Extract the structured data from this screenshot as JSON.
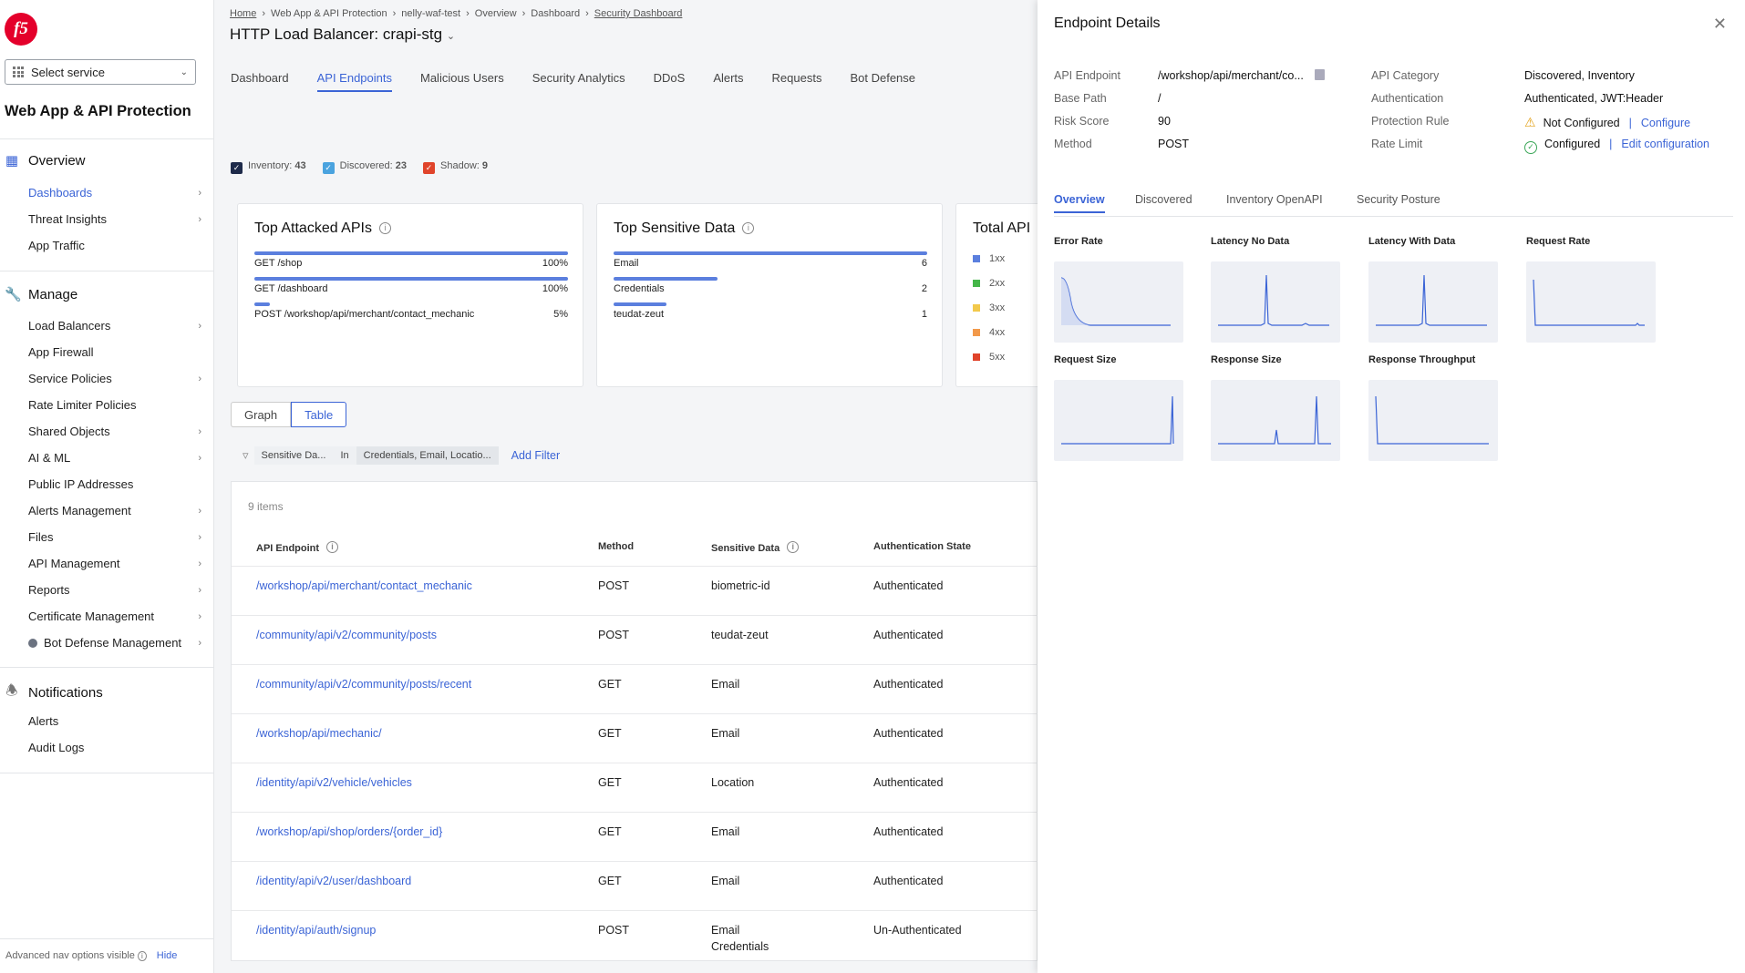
{
  "sidebar": {
    "service_select": "Select service",
    "app_title": "Web App & API Protection",
    "overview": {
      "label": "Overview",
      "items": [
        {
          "label": "Dashboards"
        },
        {
          "label": "Threat Insights"
        },
        {
          "label": "App Traffic"
        }
      ]
    },
    "manage": {
      "label": "Manage",
      "items": [
        {
          "label": "Load Balancers"
        },
        {
          "label": "App Firewall"
        },
        {
          "label": "Service Policies"
        },
        {
          "label": "Rate Limiter Policies"
        },
        {
          "label": "Shared Objects"
        },
        {
          "label": "AI & ML"
        },
        {
          "label": "Public IP Addresses"
        },
        {
          "label": "Alerts Management"
        },
        {
          "label": "Files"
        },
        {
          "label": "API Management"
        },
        {
          "label": "Reports"
        },
        {
          "label": "Certificate Management"
        },
        {
          "label": "Bot Defense Management"
        }
      ]
    },
    "notifications": {
      "label": "Notifications",
      "items": [
        {
          "label": "Alerts"
        },
        {
          "label": "Audit Logs"
        }
      ]
    },
    "advanced": "Advanced nav options visible",
    "hide": "Hide"
  },
  "breadcrumb": [
    "Home",
    "Web App & API Protection",
    "nelly-waf-test",
    "Overview",
    "Dashboard",
    "Security Dashboard"
  ],
  "page_title": "HTTP Load Balancer: crapi-stg",
  "tabs": [
    "Dashboard",
    "API Endpoints",
    "Malicious Users",
    "Security Analytics",
    "DDoS",
    "Alerts",
    "Requests",
    "Bot Defense"
  ],
  "legend": {
    "inventory_label": "Inventory:",
    "inventory_count": "43",
    "discovered_label": "Discovered:",
    "discovered_count": "23",
    "shadow_label": "Shadow:",
    "shadow_count": "9"
  },
  "top_attacked": {
    "title": "Top Attacked APIs",
    "rows": [
      {
        "label": "GET /shop",
        "value": "100%",
        "fraction": 1.0
      },
      {
        "label": "GET /dashboard",
        "value": "100%",
        "fraction": 1.0
      },
      {
        "label": "POST /workshop/api/merchant/contact_mechanic",
        "value": "5%",
        "fraction": 0.05
      }
    ]
  },
  "top_sensitive": {
    "title": "Top Sensitive Data",
    "rows": [
      {
        "label": "Email",
        "value": "6",
        "fraction": 1.0
      },
      {
        "label": "Credentials",
        "value": "2",
        "fraction": 0.33
      },
      {
        "label": "teudat-zeut",
        "value": "1",
        "fraction": 0.17
      }
    ]
  },
  "total_api": {
    "title": "Total API",
    "legend": [
      "1xx",
      "2xx",
      "3xx",
      "4xx",
      "5xx"
    ]
  },
  "view_toggle": [
    "Graph",
    "Table"
  ],
  "filter": {
    "key": "Sensitive Da...",
    "op": "In",
    "value": "Credentials, Email, Locatio...",
    "add": "Add Filter"
  },
  "table": {
    "count": "9 items",
    "headers": [
      "API Endpoint",
      "Method",
      "Sensitive Data",
      "Authentication State"
    ],
    "rows": [
      {
        "endpoint": "/workshop/api/merchant/contact_mechanic",
        "method": "POST",
        "data": "biometric-id",
        "data2": "",
        "auth": "Authenticated"
      },
      {
        "endpoint": "/community/api/v2/community/posts",
        "method": "POST",
        "data": "teudat-zeut",
        "data2": "",
        "auth": "Authenticated"
      },
      {
        "endpoint": "/community/api/v2/community/posts/recent",
        "method": "GET",
        "data": "Email",
        "data2": "",
        "auth": "Authenticated"
      },
      {
        "endpoint": "/workshop/api/mechanic/",
        "method": "GET",
        "data": "Email",
        "data2": "",
        "auth": "Authenticated"
      },
      {
        "endpoint": "/identity/api/v2/vehicle/vehicles",
        "method": "GET",
        "data": "Location",
        "data2": "",
        "auth": "Authenticated"
      },
      {
        "endpoint": "/workshop/api/shop/orders/{order_id}",
        "method": "GET",
        "data": "Email",
        "data2": "",
        "auth": "Authenticated"
      },
      {
        "endpoint": "/identity/api/v2/user/dashboard",
        "method": "GET",
        "data": "Email",
        "data2": "",
        "auth": "Authenticated"
      },
      {
        "endpoint": "/identity/api/auth/signup",
        "method": "POST",
        "data": "Email",
        "data2": "Credentials",
        "auth": "Un-Authenticated"
      }
    ]
  },
  "panel": {
    "title": "Endpoint Details",
    "left": [
      {
        "k": "API Endpoint",
        "v": "/workshop/api/merchant/co..."
      },
      {
        "k": "Base Path",
        "v": "/"
      },
      {
        "k": "Risk Score",
        "v": "90"
      },
      {
        "k": "Method",
        "v": "POST"
      }
    ],
    "right": {
      "category_k": "API Category",
      "category_v": "Discovered, Inventory",
      "auth_k": "Authentication",
      "auth_v": "Authenticated, JWT:Header",
      "protection_k": "Protection Rule",
      "protection_v": "Not Configured",
      "protection_link": "Configure",
      "rate_k": "Rate Limit",
      "rate_v": "Configured",
      "rate_link": "Edit configuration"
    },
    "tabs": [
      "Overview",
      "Discovered",
      "Inventory OpenAPI",
      "Security Posture"
    ],
    "charts": [
      "Error Rate",
      "Latency No Data",
      "Latency With Data",
      "Request Rate",
      "Request Size",
      "Response Size",
      "Response Throughput"
    ]
  },
  "colors": {
    "accent": "#3b64d6",
    "inventory": "#1e2a4a",
    "discovered": "#4aa3df",
    "shadow": "#e0442b",
    "c1xx": "#5b7fde",
    "c2xx": "#45b649",
    "c3xx": "#f2c94c",
    "c4xx": "#f2994a",
    "c5xx": "#e0442b"
  }
}
